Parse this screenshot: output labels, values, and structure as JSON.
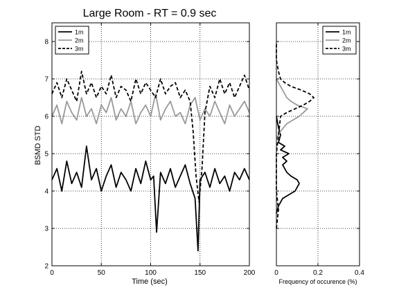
{
  "chart_data": [
    {
      "type": "line",
      "title": "Large Room -  RT = 0.9 sec",
      "xlabel": "Time (sec)",
      "ylabel": "BSMD STD",
      "xlim": [
        0,
        200
      ],
      "ylim": [
        2,
        8.5
      ],
      "xticks": [
        "0",
        "50",
        "100",
        "150",
        "200"
      ],
      "yticks": [
        "2",
        "3",
        "4",
        "5",
        "6",
        "7",
        "8"
      ],
      "grid": true,
      "legend_position": "top-left",
      "series": [
        {
          "name": "1m",
          "color": "#000000",
          "dash": "solid",
          "x": [
            0,
            5,
            10,
            15,
            20,
            25,
            30,
            35,
            40,
            45,
            50,
            55,
            60,
            65,
            70,
            75,
            80,
            85,
            90,
            95,
            100,
            103,
            106,
            110,
            115,
            120,
            125,
            130,
            135,
            140,
            145,
            148,
            150,
            155,
            160,
            165,
            170,
            175,
            180,
            185,
            190,
            195,
            200
          ],
          "y": [
            4.3,
            4.6,
            4.0,
            4.8,
            4.2,
            4.5,
            4.1,
            5.2,
            4.3,
            4.6,
            4.0,
            4.4,
            4.7,
            4.1,
            4.5,
            4.3,
            4.0,
            4.6,
            4.2,
            4.8,
            4.3,
            4.4,
            2.9,
            4.5,
            4.2,
            4.6,
            4.1,
            4.4,
            4.7,
            4.2,
            3.8,
            2.4,
            4.3,
            4.5,
            4.1,
            4.6,
            4.2,
            4.4,
            4.0,
            4.5,
            4.3,
            4.6,
            4.3
          ]
        },
        {
          "name": "2m",
          "color": "#999999",
          "dash": "solid",
          "x": [
            0,
            5,
            10,
            15,
            20,
            25,
            30,
            35,
            40,
            45,
            50,
            55,
            60,
            65,
            70,
            75,
            80,
            85,
            90,
            95,
            100,
            105,
            110,
            115,
            120,
            125,
            130,
            135,
            140,
            145,
            150,
            155,
            160,
            165,
            170,
            175,
            180,
            185,
            190,
            195,
            200
          ],
          "y": [
            6.0,
            6.3,
            5.8,
            6.4,
            6.1,
            5.9,
            6.5,
            6.0,
            6.2,
            5.8,
            6.3,
            6.1,
            6.5,
            5.9,
            6.2,
            6.0,
            6.4,
            5.8,
            6.1,
            6.3,
            6.0,
            6.6,
            5.9,
            6.2,
            6.4,
            6.0,
            6.1,
            5.8,
            6.3,
            6.5,
            5.9,
            6.2,
            6.0,
            6.4,
            6.1,
            5.8,
            6.3,
            6.0,
            6.2,
            6.4,
            6.1
          ]
        },
        {
          "name": "3m",
          "color": "#000000",
          "dash": "dashed",
          "x": [
            0,
            5,
            10,
            15,
            20,
            25,
            30,
            35,
            40,
            45,
            50,
            55,
            60,
            65,
            70,
            75,
            80,
            85,
            90,
            95,
            100,
            105,
            110,
            115,
            120,
            125,
            130,
            135,
            140,
            143,
            146,
            149,
            152,
            155,
            160,
            165,
            170,
            175,
            180,
            185,
            190,
            195,
            200
          ],
          "y": [
            6.6,
            6.9,
            6.5,
            7.0,
            6.7,
            6.4,
            7.2,
            6.6,
            6.9,
            6.5,
            6.8,
            6.6,
            7.1,
            6.5,
            6.8,
            6.7,
            6.4,
            7.0,
            6.6,
            6.9,
            6.7,
            6.5,
            7.0,
            6.6,
            6.8,
            6.9,
            6.5,
            6.7,
            6.4,
            5.6,
            4.4,
            3.7,
            4.6,
            6.1,
            6.8,
            6.5,
            7.0,
            6.6,
            6.9,
            6.5,
            6.8,
            7.1,
            6.7
          ]
        }
      ]
    },
    {
      "type": "line",
      "title": "",
      "xlabel": "Frequency of occurence (%)",
      "ylabel": "",
      "xlim": [
        0,
        0.4
      ],
      "ylim": [
        2,
        8.5
      ],
      "xticks": [
        "0",
        "0.2",
        "0.4"
      ],
      "grid": true,
      "legend_position": "top-right",
      "series": [
        {
          "name": "1m",
          "color": "#000000",
          "dash": "solid",
          "y": [
            3.4,
            3.6,
            3.8,
            3.9,
            4.0,
            4.1,
            4.2,
            4.3,
            4.4,
            4.5,
            4.6,
            4.7,
            4.8,
            4.9,
            5.0,
            5.1,
            5.2,
            5.3,
            5.5,
            5.7,
            6.0
          ],
          "x": [
            0.0,
            0.01,
            0.03,
            0.06,
            0.09,
            0.1,
            0.11,
            0.1,
            0.07,
            0.05,
            0.04,
            0.03,
            0.05,
            0.03,
            0.06,
            0.02,
            0.04,
            0.01,
            0.02,
            0.01,
            0.0
          ]
        },
        {
          "name": "2m",
          "color": "#999999",
          "dash": "solid",
          "y": [
            5.4,
            5.6,
            5.8,
            5.9,
            6.0,
            6.1,
            6.2,
            6.3,
            6.4,
            6.5,
            6.6,
            6.7,
            6.8,
            7.0
          ],
          "x": [
            0.0,
            0.02,
            0.05,
            0.08,
            0.11,
            0.13,
            0.15,
            0.1,
            0.07,
            0.05,
            0.04,
            0.03,
            0.02,
            0.0
          ]
        },
        {
          "name": "3m",
          "color": "#000000",
          "dash": "dashed",
          "y": [
            3.0,
            3.5,
            4.0,
            5.0,
            5.5,
            6.0,
            6.1,
            6.2,
            6.3,
            6.4,
            6.5,
            6.6,
            6.7,
            6.8,
            6.9,
            7.0,
            7.2,
            7.5,
            8.0
          ],
          "x": [
            0.0,
            0.01,
            0.0,
            0.0,
            0.01,
            0.02,
            0.05,
            0.09,
            0.13,
            0.16,
            0.18,
            0.16,
            0.12,
            0.07,
            0.04,
            0.02,
            0.01,
            0.0,
            0.0
          ]
        }
      ]
    }
  ]
}
